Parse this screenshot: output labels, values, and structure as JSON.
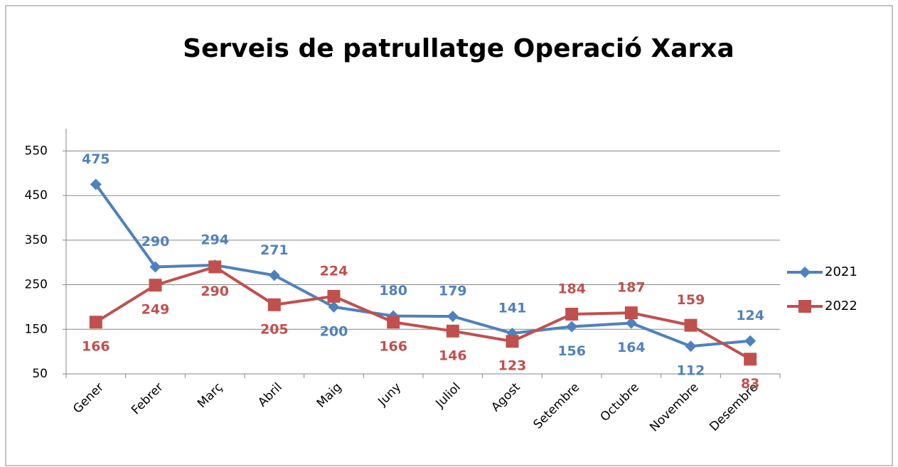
{
  "chart_data": {
    "type": "line",
    "title": "Serveis de patrullatge Operació Xarxa",
    "categories": [
      "Gener",
      "Febrer",
      "Març",
      "Abril",
      "Maig",
      "Juny",
      "Juliol",
      "Agost",
      "Setembre",
      "Octubre",
      "Novembre",
      "Desembre"
    ],
    "series": [
      {
        "name": "2021",
        "color": "#4f81bd",
        "marker": "diamond",
        "values": [
          475,
          290,
          294,
          271,
          200,
          180,
          179,
          141,
          156,
          164,
          112,
          124
        ]
      },
      {
        "name": "2022",
        "color": "#c0504d",
        "marker": "square",
        "values": [
          166,
          249,
          290,
          205,
          224,
          166,
          146,
          123,
          184,
          187,
          159,
          83
        ]
      }
    ],
    "ylim": [
      50,
      600
    ],
    "yticks": [
      50,
      150,
      250,
      350,
      450,
      550
    ],
    "grid": true,
    "legend": "right"
  }
}
